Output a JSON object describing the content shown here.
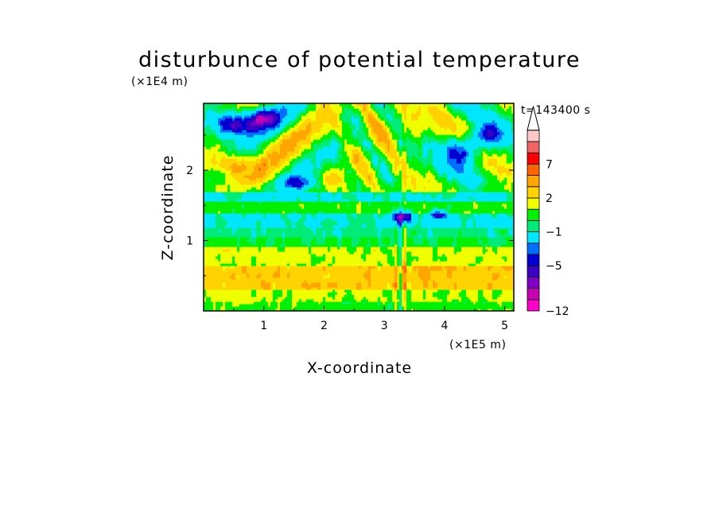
{
  "chart_data": {
    "type": "heatmap",
    "title": "disturbunce of potential temperature",
    "xlabel": "X-coordinate",
    "ylabel": "Z-coordinate",
    "x_unit": "(×1E5 m)",
    "y_unit": "(×1E4 m)",
    "time_label": "t=143400 s",
    "xlim": [
      0,
      5.15
    ],
    "ylim": [
      0,
      2.95
    ],
    "x_ticks": [
      "1",
      "2",
      "3",
      "4",
      "5"
    ],
    "x_tick_values": [
      1,
      2,
      3,
      4,
      5
    ],
    "y_ticks": [
      "1",
      "2"
    ],
    "y_tick_values": [
      1,
      2
    ],
    "colorbar": {
      "colors": [
        "#ff00c8",
        "#c800b4",
        "#8000c8",
        "#3c00c0",
        "#0000d2",
        "#006eff",
        "#00e6ff",
        "#00eb78",
        "#00f000",
        "#f0ff00",
        "#ffd200",
        "#ffa500",
        "#ff6400",
        "#ff0000",
        "#f06464",
        "#ffc8c8"
      ],
      "tick_labels": [
        "-12",
        "-5",
        "-1",
        "2",
        "7"
      ],
      "tick_levels": [
        0,
        4,
        7,
        10,
        13
      ],
      "extend": "max"
    },
    "field": {
      "description": "Disturbance field of potential temperature across the domain; bottom 0–1×1E4 m mostly +1..+2 (yellow/orange bands), 1–1.6×1E4 m near 0..−1 (green/cyan), upper region 1.6–3×1E4 m alternating wave bands of −5..−3 (blue) and +2..+5 (orange/red), a central column near x≈3.3×1E5 m with localized −5 cores",
      "value_range": [
        -6,
        6
      ]
    }
  }
}
